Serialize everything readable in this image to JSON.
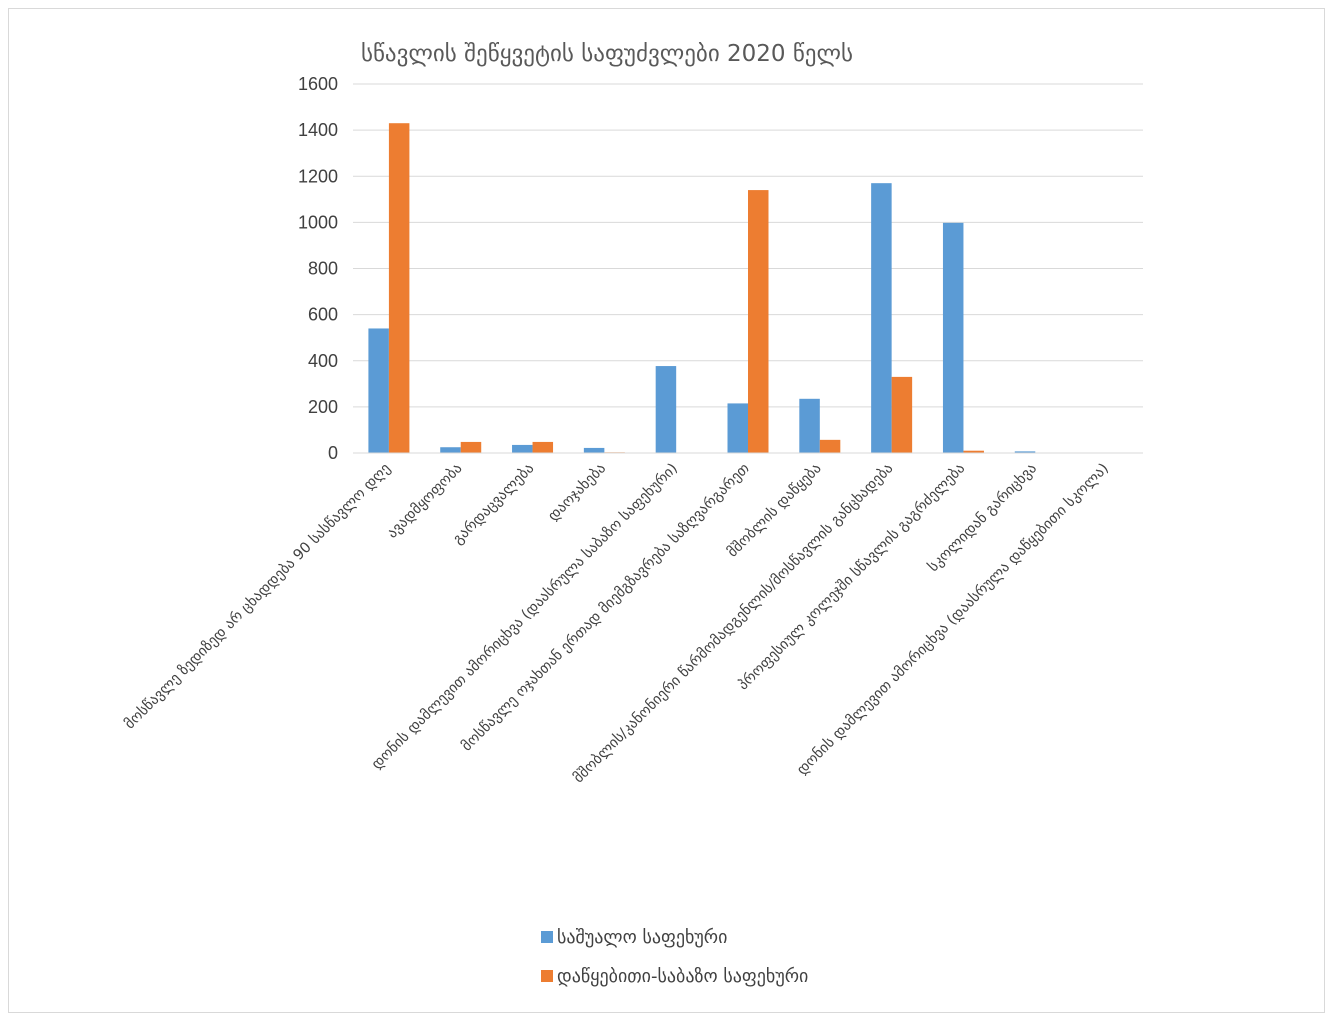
{
  "chart_data": {
    "type": "bar",
    "title": "სწავლის შეწყვეტის საფუძვლები 2020 წელს",
    "xlabel": "",
    "ylabel": "",
    "ylim": [
      0,
      1600
    ],
    "yticks": [
      0,
      200,
      400,
      600,
      800,
      1000,
      1200,
      1400,
      1600
    ],
    "grid": true,
    "legend_position": "bottom",
    "categories": [
      "მოსწავლე ზედიზედ არ ცხადდება 90 სასწავლო დღე",
      "ავადმყოფობა",
      "გარდაცვალება",
      "დაოჯახება",
      "დონის დამლევით ამორიცხვა (დაასრულა საბაზო საფეხური)",
      "მოსწავლე ოჯახთან ერთად მიემგზავრება საზღვარგარეთ",
      "მშობლის დაწყება",
      "მშობლის/კანონიერი წარმომადგენლის/მოსწავლის განცხადება",
      "პროფესიულ კოლეჯში სწავლის გაგრძელება",
      "სკოლიდან გარიცხვა",
      "დონის დამლევით ამორიცხვა (დაასრულა დაწყებითი სკოლა)"
    ],
    "series": [
      {
        "name": "საშუალო საფეხური",
        "color": "#5b9bd5",
        "values": [
          540,
          25,
          35,
          22,
          377,
          215,
          235,
          1170,
          998,
          7,
          0
        ]
      },
      {
        "name": "დაწყებითი-საბაზო საფეხური",
        "color": "#ed7d31",
        "values": [
          1430,
          48,
          48,
          3,
          0,
          1140,
          57,
          330,
          10,
          0,
          0
        ]
      }
    ]
  }
}
